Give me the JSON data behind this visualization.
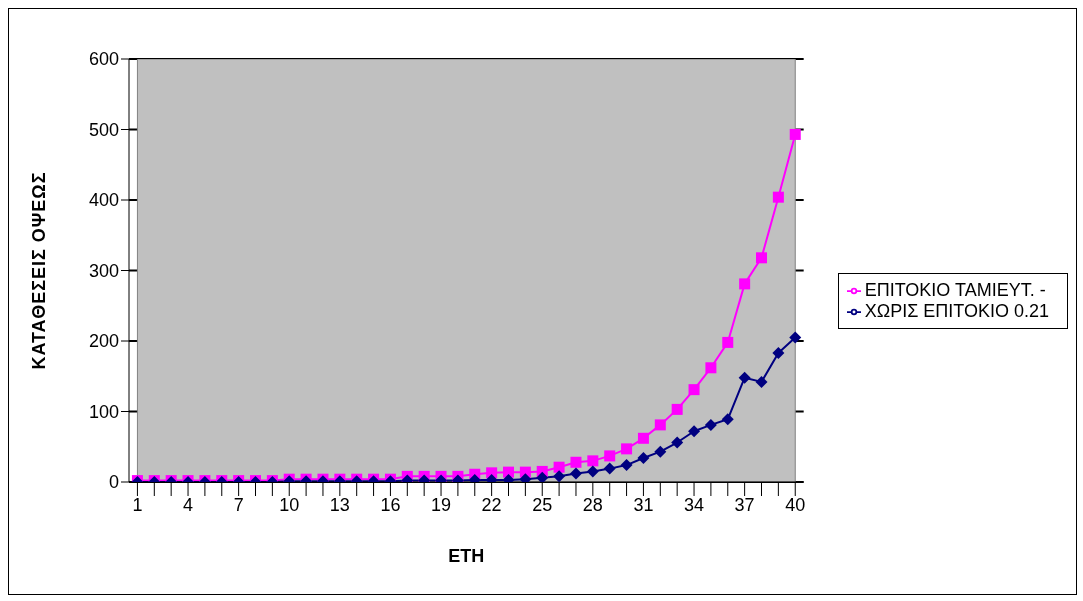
{
  "chart_data": {
    "type": "line",
    "xlabel": "ΕΤΗ",
    "ylabel": "ΚΑΤΑΘΕΣΕΙΣ ΟΨΕΩΣ",
    "categories": [
      "1",
      null,
      null,
      "4",
      null,
      null,
      "7",
      null,
      null,
      "10",
      null,
      null,
      "13",
      null,
      null,
      "16",
      null,
      null,
      "19",
      null,
      null,
      "22",
      null,
      null,
      "25",
      null,
      null,
      "28",
      null,
      null,
      "31",
      null,
      null,
      "34",
      null,
      null,
      "37",
      null,
      null,
      "40"
    ],
    "series": [
      {
        "name": "ΧΩΡΙΣ ΕΠΙΤΟΚΙΟ 0.21",
        "color": "#000080",
        "marker": "diamond",
        "values": [
          0,
          0,
          0,
          0,
          0,
          0,
          0,
          0,
          0,
          1,
          1,
          1,
          1,
          1,
          1,
          1,
          2,
          2,
          2,
          2,
          3,
          3,
          3,
          4,
          6,
          8,
          12,
          15,
          19,
          24,
          34,
          43,
          56,
          72,
          81,
          89,
          148,
          142,
          183,
          205
        ]
      },
      {
        "name": "ΕΠΙΤΟΚΙΟ ΤΑΜΙΕΥΤ. -",
        "color": "#ff00ff",
        "marker": "square",
        "values": [
          2,
          2,
          2,
          2,
          2,
          2,
          2,
          2,
          2,
          4,
          4,
          4,
          4,
          4,
          4,
          4,
          8,
          8,
          8,
          8,
          11,
          13,
          14,
          14,
          15,
          21,
          28,
          30,
          37,
          47,
          62,
          81,
          103,
          131,
          162,
          198,
          281,
          318,
          404,
          493
        ]
      }
    ],
    "ylim": [
      0,
      600
    ],
    "yticks": [
      0,
      100,
      200,
      300,
      400,
      500,
      600
    ],
    "grid": "y",
    "legend": "right",
    "line_style": "solid"
  }
}
